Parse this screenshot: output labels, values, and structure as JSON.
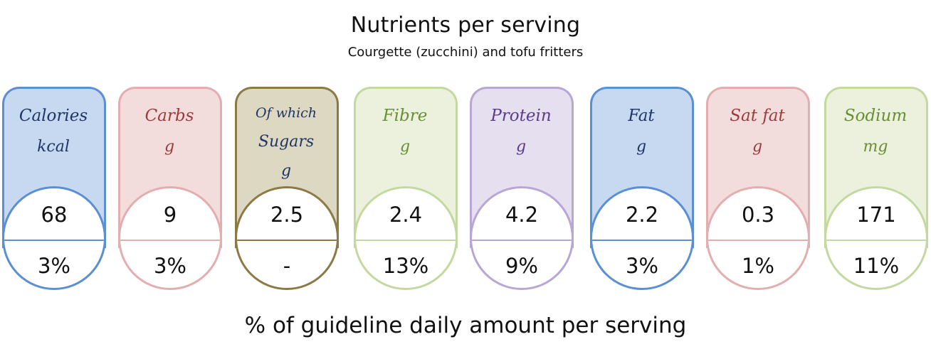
{
  "header": {
    "title": "Nutrients per serving",
    "subtitle": "Courgette (zucchini) and tofu fritters"
  },
  "footer": {
    "text": "% of guideline daily amount per serving"
  },
  "cards": [
    {
      "line1": "Calories",
      "line2": "kcal",
      "line3": "",
      "value": "68",
      "pct": "3%",
      "border": "#5b8fd4",
      "fill": "#c7d9f1",
      "text": "#1f3563"
    },
    {
      "line1": "Carbs",
      "line2": "g",
      "line3": "",
      "value": "9",
      "pct": "3%",
      "border": "#e2aeb0",
      "fill": "#f3dcdc",
      "text": "#9b3b3d"
    },
    {
      "line1": "Of which",
      "line2": "Sugars",
      "line3": "g",
      "value": "2.5",
      "pct": "-",
      "border": "#8c7a46",
      "fill": "#ddd8c2",
      "text": "#1f3563"
    },
    {
      "line1": "Fibre",
      "line2": "g",
      "line3": "",
      "value": "2.4",
      "pct": "13%",
      "border": "#c3d9a0",
      "fill": "#ebf1dd",
      "text": "#6a8e34"
    },
    {
      "line1": "Protein",
      "line2": "g",
      "line3": "",
      "value": "4.2",
      "pct": "9%",
      "border": "#b8a6d4",
      "fill": "#e5dff0",
      "text": "#5b3c8a"
    },
    {
      "line1": "Fat",
      "line2": "g",
      "line3": "",
      "value": "2.2",
      "pct": "3%",
      "border": "#5b8fd4",
      "fill": "#c7d9f1",
      "text": "#1f3563"
    },
    {
      "line1": "Sat fat",
      "line2": "g",
      "line3": "",
      "value": "0.3",
      "pct": "1%",
      "border": "#e2aeb0",
      "fill": "#f3dcdc",
      "text": "#9b3b3d"
    },
    {
      "line1": "Sodium",
      "line2": "mg",
      "line3": "",
      "value": "171",
      "pct": "11%",
      "border": "#c3d9a0",
      "fill": "#ebf1dd",
      "text": "#6a8e34"
    }
  ]
}
